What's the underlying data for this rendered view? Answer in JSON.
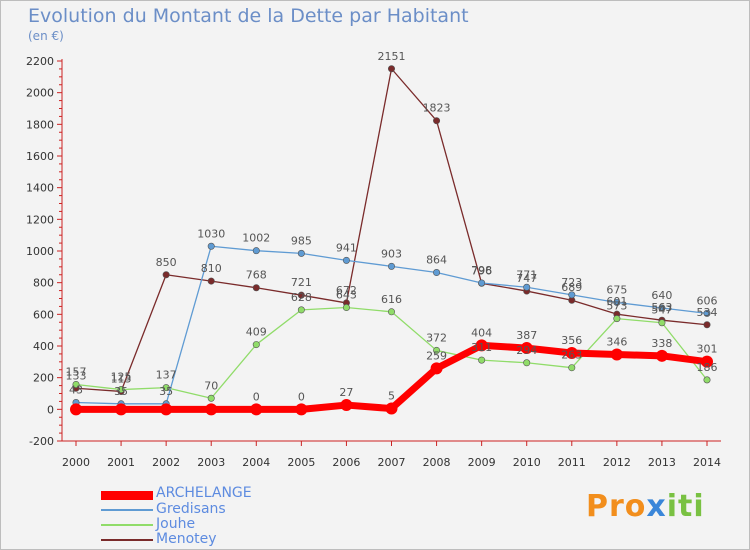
{
  "header": {
    "title": "Evolution du Montant de la Dette par Habitant",
    "unit": "(en €)"
  },
  "logo": {
    "text": "Proxiti",
    "colors": [
      "#f28e1c",
      "#3a86d9",
      "#79c142"
    ]
  },
  "chart_data": {
    "type": "line",
    "title": "Evolution du Montant de la Dette par Habitant",
    "ylabel": "(en €)",
    "xlabel": "",
    "x": [
      "2000",
      "2001",
      "2002",
      "2003",
      "2004",
      "2005",
      "2006",
      "2007",
      "2008",
      "2009",
      "2010",
      "2011",
      "2012",
      "2013",
      "2014"
    ],
    "ylim": [
      -200,
      2200
    ],
    "yticks": [
      -200,
      0,
      200,
      400,
      600,
      800,
      1000,
      1200,
      1400,
      1600,
      1800,
      2000,
      2200
    ],
    "grid": false,
    "legend_position": "bottom-left",
    "series": [
      {
        "name": "ARCHELANGE",
        "color": "#ff0000",
        "values": [
          0,
          0,
          0,
          0,
          0,
          0,
          27,
          5,
          259,
          404,
          387,
          356,
          346,
          338,
          301
        ],
        "labels": [
          "",
          "",
          "",
          "",
          "0",
          "0",
          "27",
          "5",
          "259",
          "404",
          "387",
          "356",
          "346",
          "338",
          "301"
        ]
      },
      {
        "name": "Gredisans",
        "color": "#5f9bd3",
        "values": [
          43,
          35,
          35,
          1030,
          1002,
          985,
          941,
          903,
          864,
          798,
          771,
          723,
          675,
          640,
          606
        ],
        "labels": [
          "43",
          "35",
          "35",
          "1030",
          "1002",
          "985",
          "941",
          "903",
          "864",
          "798",
          "771",
          "723",
          "675",
          "640",
          "606"
        ]
      },
      {
        "name": "Jouhe",
        "color": "#90dc69",
        "values": [
          157,
          125,
          137,
          70,
          409,
          628,
          643,
          616,
          372,
          311,
          294,
          263,
          573,
          547,
          186
        ],
        "labels": [
          "157",
          "125",
          "137",
          "70",
          "409",
          "628",
          "643",
          "616",
          "372",
          "311",
          "294",
          "263",
          "573",
          "547",
          "186"
        ]
      },
      {
        "name": "Menotey",
        "color": "#7a2b2b",
        "values": [
          133,
          113,
          850,
          810,
          768,
          721,
          672,
          2151,
          1823,
          796,
          747,
          689,
          601,
          563,
          534
        ],
        "labels": [
          "133",
          "113",
          "850",
          "810",
          "768",
          "721",
          "672",
          "2151",
          "1823",
          "796",
          "747",
          "689",
          "601",
          "563",
          "534"
        ]
      }
    ]
  }
}
